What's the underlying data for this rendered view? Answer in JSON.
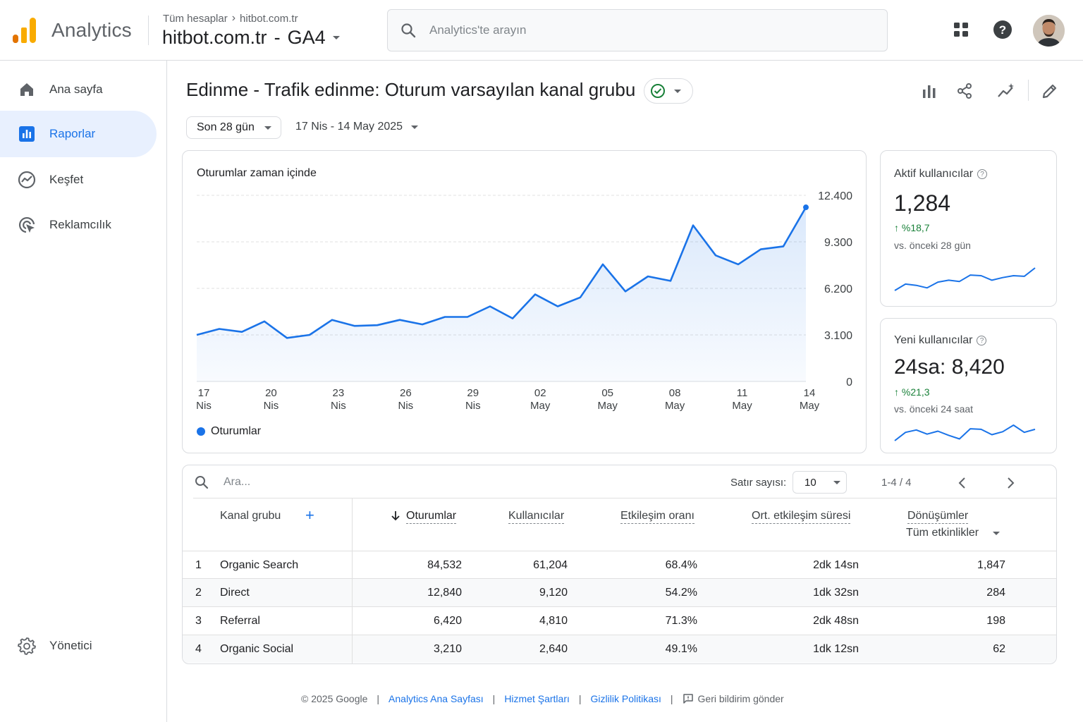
{
  "app": {
    "name": "Analytics"
  },
  "breadcrumb": {
    "root": "Tüm hesaplar",
    "account": "hitbot.com.tr"
  },
  "property": {
    "name": "hitbot.com.tr",
    "separator": "-",
    "stream": "GA4"
  },
  "search": {
    "placeholder": "Analytics'te arayın"
  },
  "top_icons": [
    "apps-grid-icon",
    "help-icon",
    "user-avatar"
  ],
  "sidebar": {
    "items": [
      {
        "label": "Ana sayfa",
        "icon": "home-icon",
        "active": false
      },
      {
        "label": "Raporlar",
        "icon": "reports-icon",
        "active": true
      },
      {
        "label": "Keşfet",
        "icon": "explore-icon",
        "active": false
      },
      {
        "label": "Reklamcılık",
        "icon": "advertising-icon",
        "active": false
      }
    ],
    "admin": {
      "label": "Yönetici",
      "icon": "gear-icon"
    }
  },
  "header": {
    "title": "Edinme - Trafik edinme: Oturum varsayılan kanal grubu",
    "date_preset": "Son 28 gün",
    "date_range": "17 Nis - 14 May 2025"
  },
  "colors": {
    "accent": "#1a73e8",
    "positive": "#188038",
    "active_bg": "#e8f0fe"
  },
  "chart_data": {
    "type": "line",
    "title": "Oturumlar zaman içinde",
    "series": [
      {
        "name": "Oturumlar",
        "values": [
          3100,
          3500,
          3300,
          4000,
          2900,
          3100,
          4100,
          3700,
          3750,
          4100,
          3800,
          4300,
          4300,
          5000,
          4200,
          5800,
          5000,
          5600,
          7800,
          6000,
          7000,
          6700,
          10400,
          8400,
          7800,
          8800,
          9000,
          11600
        ]
      }
    ],
    "x_tick_labels": [
      {
        "day": "17",
        "month": "Nis"
      },
      {
        "day": "20",
        "month": "Nis"
      },
      {
        "day": "23",
        "month": "Nis"
      },
      {
        "day": "26",
        "month": "Nis"
      },
      {
        "day": "29",
        "month": "Nis"
      },
      {
        "day": "02",
        "month": "May"
      },
      {
        "day": "05",
        "month": "May"
      },
      {
        "day": "08",
        "month": "May"
      },
      {
        "day": "11",
        "month": "May"
      },
      {
        "day": "14",
        "month": "May"
      }
    ],
    "y_tick_labels": [
      "12.400",
      "9.300",
      "6.200",
      "3.100",
      "0"
    ],
    "y_ticks": [
      12400,
      9300,
      6200,
      3100,
      0
    ],
    "ylim": [
      0,
      12400
    ],
    "grid": true,
    "legend": "bottom-left"
  },
  "kpis": [
    {
      "title": "Aktif kullanıcılar",
      "value": "1,284",
      "change": "%18,7",
      "comparison": "vs. önceki 28 gün",
      "spark": [
        3,
        4,
        3.8,
        3.4,
        4.3,
        4.6,
        4.4,
        5.4,
        5.3,
        4.6,
        5,
        5.3,
        5.2,
        6.5
      ]
    },
    {
      "title": "Yeni kullanıcılar",
      "value": "24sa: 8,420",
      "change": "%21,3",
      "comparison": "vs. önceki 24 saat",
      "spark": [
        2,
        3.4,
        3.8,
        3.1,
        3.6,
        2.9,
        2.3,
        4,
        3.9,
        3,
        3.5,
        4.6,
        3.4,
        3.9
      ]
    }
  ],
  "table": {
    "search_placeholder": "Ara...",
    "rows_per_page_label": "Satır sayısı:",
    "rows_per_page": "10",
    "pagination": "1-4 / 4",
    "dimension_header": "Kanal grubu",
    "add_dimension": "+",
    "columns": [
      "Oturumlar",
      "Kullanıcılar",
      "Etkileşim oranı",
      "Ort. etkileşim süresi",
      "Dönüşümler"
    ],
    "conversion_filter": "Tüm etkinlikler",
    "sort_column": "Oturumlar",
    "rows": [
      {
        "rank": "1",
        "channel": "Organic Search",
        "sessions": "84,532",
        "users": "61,204",
        "engagement_rate": "68.4%",
        "avg_time": "2dk 14sn",
        "conversions": "1,847"
      },
      {
        "rank": "2",
        "channel": "Direct",
        "sessions": "12,840",
        "users": "9,120",
        "engagement_rate": "54.2%",
        "avg_time": "1dk 32sn",
        "conversions": "284"
      },
      {
        "rank": "3",
        "channel": "Referral",
        "sessions": "6,420",
        "users": "4,810",
        "engagement_rate": "71.3%",
        "avg_time": "2dk 48sn",
        "conversions": "198"
      },
      {
        "rank": "4",
        "channel": "Organic Social",
        "sessions": "3,210",
        "users": "2,640",
        "engagement_rate": "49.1%",
        "avg_time": "1dk 12sn",
        "conversions": "62"
      }
    ]
  },
  "footer": {
    "copyright": "© 2025 Google",
    "links": [
      "Analytics Ana Sayfası",
      "Hizmet Şartları",
      "Gizlilik Politikası"
    ],
    "feedback": "Geri bildirim gönder"
  }
}
